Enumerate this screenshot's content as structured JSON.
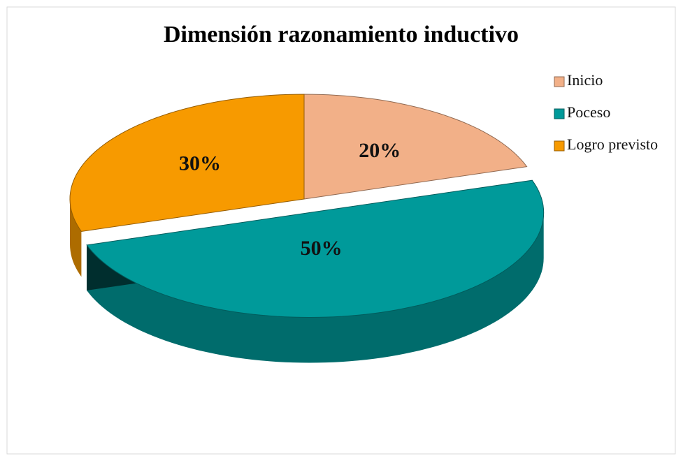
{
  "chart_data": {
    "type": "pie3d",
    "title": "Dimensión razonamiento inductivo",
    "categories": [
      "Inicio",
      "Poceso",
      "Logro previsto"
    ],
    "values": [
      20,
      50,
      30
    ],
    "value_labels": [
      "20%",
      "50%",
      "30%"
    ],
    "colors": [
      "#f2b088",
      "#009a9a",
      "#f79a00"
    ],
    "legend": "right"
  }
}
